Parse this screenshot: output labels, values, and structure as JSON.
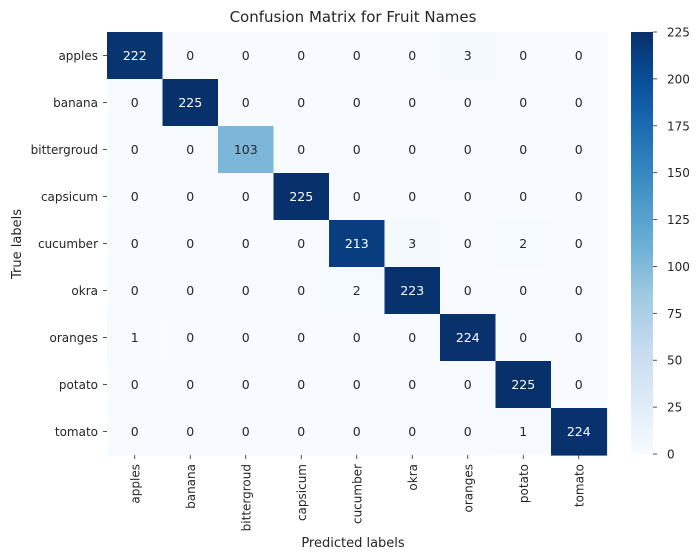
{
  "chart_data": {
    "type": "heatmap",
    "title": "Confusion Matrix for Fruit Names",
    "xlabel": "Predicted labels",
    "ylabel": "True labels",
    "x_categories": [
      "apples",
      "banana",
      "bittergroud",
      "capsicum",
      "cucumber",
      "okra",
      "oranges",
      "potato",
      "tomato"
    ],
    "y_categories": [
      "apples",
      "banana",
      "bittergroud",
      "capsicum",
      "cucumber",
      "okra",
      "oranges",
      "potato",
      "tomato"
    ],
    "values": [
      [
        222,
        0,
        0,
        0,
        0,
        0,
        3,
        0,
        0
      ],
      [
        0,
        225,
        0,
        0,
        0,
        0,
        0,
        0,
        0
      ],
      [
        0,
        0,
        103,
        0,
        0,
        0,
        0,
        0,
        0
      ],
      [
        0,
        0,
        0,
        225,
        0,
        0,
        0,
        0,
        0
      ],
      [
        0,
        0,
        0,
        0,
        213,
        3,
        0,
        2,
        0
      ],
      [
        0,
        0,
        0,
        0,
        2,
        223,
        0,
        0,
        0
      ],
      [
        1,
        0,
        0,
        0,
        0,
        0,
        224,
        0,
        0
      ],
      [
        0,
        0,
        0,
        0,
        0,
        0,
        0,
        225,
        0
      ],
      [
        0,
        0,
        0,
        0,
        0,
        0,
        0,
        1,
        224
      ]
    ],
    "colorbar": {
      "range": [
        0,
        225
      ],
      "ticks": [
        0,
        25,
        50,
        75,
        100,
        125,
        150,
        175,
        200,
        225
      ]
    },
    "colormap": "Blues",
    "colors": {
      "low": "#f7fbff",
      "high": "#08306b"
    }
  }
}
